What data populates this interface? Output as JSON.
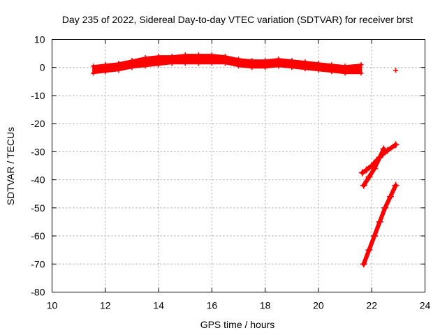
{
  "chart_data": {
    "type": "scatter",
    "title": "Day 235 of 2022, Sidereal Day-to-day VTEC variation (SDTVAR) for receiver brst",
    "xlabel": "GPS time / hours",
    "ylabel": "SDTVAR / TECUs",
    "xlim": [
      10,
      24
    ],
    "ylim": [
      -80,
      10
    ],
    "xticks": [
      10,
      12,
      14,
      16,
      18,
      20,
      22,
      24
    ],
    "yticks": [
      10,
      0,
      -10,
      -20,
      -30,
      -40,
      -50,
      -60,
      -70,
      -80
    ],
    "grid": true,
    "marker": "plus",
    "color": "#ff0000",
    "series": [
      {
        "band": true,
        "x": [
          11.55,
          12.0,
          12.5,
          13.0,
          13.5,
          14.0,
          14.5,
          15.0,
          15.5,
          16.0,
          16.5,
          17.0,
          17.5,
          18.0,
          18.5,
          19.0,
          19.5,
          20.0,
          20.5,
          21.0,
          21.6
        ],
        "ylow": [
          -2.0,
          -1.5,
          -1.0,
          0.0,
          0.5,
          1.0,
          1.5,
          1.5,
          1.5,
          1.5,
          1.5,
          0.5,
          0.0,
          0.0,
          0.5,
          0.0,
          -0.5,
          -1.0,
          -1.5,
          -2.0,
          -2.0
        ],
        "yhigh": [
          0.5,
          1.0,
          1.5,
          2.5,
          3.5,
          4.0,
          4.0,
          4.5,
          4.5,
          4.5,
          4.0,
          3.0,
          2.5,
          2.5,
          3.0,
          2.5,
          2.0,
          1.5,
          1.0,
          0.5,
          1.0
        ]
      },
      {
        "band": false,
        "x": [
          21.65,
          21.8,
          22.0,
          22.2,
          22.4,
          22.6,
          22.9
        ],
        "y": [
          -37.5,
          -36.5,
          -35.0,
          -33.0,
          -31.0,
          -29.5,
          -27.5
        ]
      },
      {
        "band": false,
        "x": [
          21.7,
          21.9,
          22.1,
          22.3,
          22.45
        ],
        "y": [
          -42.0,
          -39.0,
          -36.0,
          -32.0,
          -29.0
        ]
      },
      {
        "band": false,
        "x": [
          21.7,
          21.9,
          22.1,
          22.3,
          22.5,
          22.7,
          22.9
        ],
        "y": [
          -70.0,
          -65.0,
          -60.0,
          -55.0,
          -50.0,
          -46.0,
          -42.0
        ]
      },
      {
        "band": false,
        "x": [
          22.9
        ],
        "y": [
          -1.0
        ]
      }
    ]
  }
}
